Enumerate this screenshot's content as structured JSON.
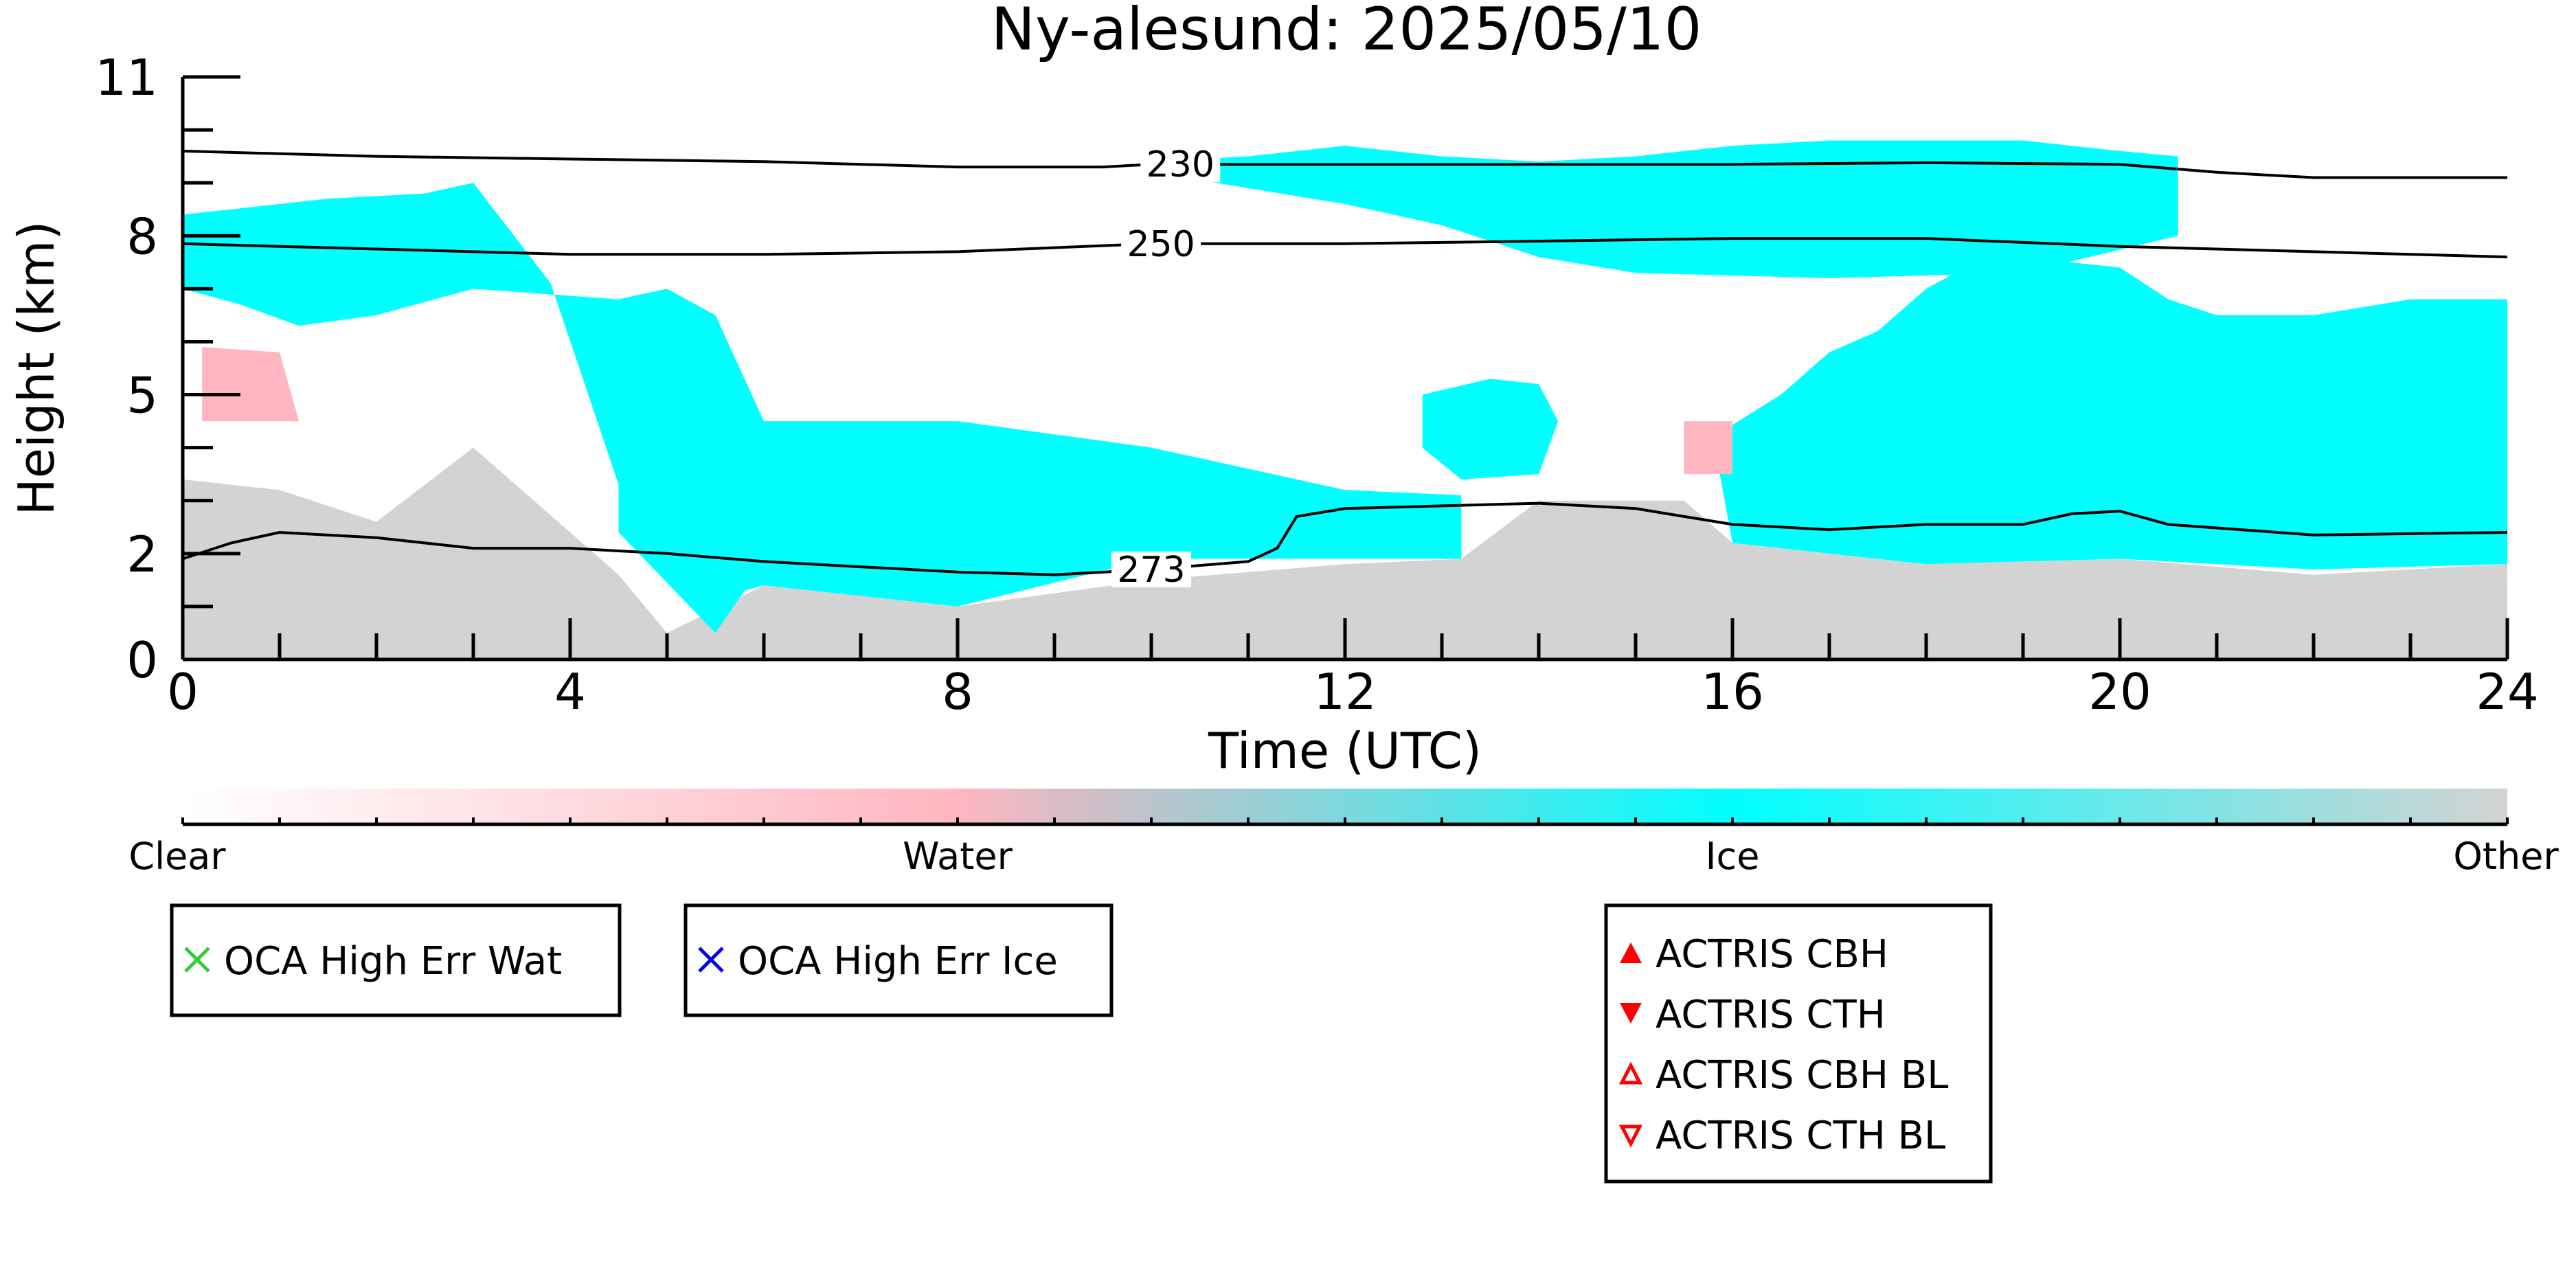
{
  "chart_data": {
    "type": "heatmap",
    "title": "Ny-alesund: 2025/05/10",
    "xlabel": "Time (UTC)",
    "ylabel": "Height (km)",
    "xlim": [
      0,
      24
    ],
    "ylim": [
      0,
      11
    ],
    "x_ticks": [
      0,
      4,
      8,
      12,
      16,
      20,
      24
    ],
    "y_ticks": [
      0,
      2,
      5,
      8,
      11
    ],
    "colors": {
      "clear": "#ffffff",
      "water": "#ffb6c1",
      "ice": "#00ffff",
      "other": "#d3d3d3"
    },
    "colorbar": {
      "labels": [
        "Clear",
        "Water",
        "Ice",
        "Other"
      ]
    },
    "temperature_contours": [
      {
        "label": "230",
        "points": [
          [
            0,
            9.6
          ],
          [
            2,
            9.5
          ],
          [
            4,
            9.45
          ],
          [
            6,
            9.4
          ],
          [
            8,
            9.3
          ],
          [
            9.5,
            9.3
          ],
          [
            10,
            9.35
          ],
          [
            12,
            9.35
          ],
          [
            14,
            9.35
          ],
          [
            16,
            9.35
          ],
          [
            18,
            9.38
          ],
          [
            20,
            9.35
          ],
          [
            21,
            9.2
          ],
          [
            22,
            9.1
          ],
          [
            24,
            9.1
          ]
        ]
      },
      {
        "label": "250",
        "points": [
          [
            0,
            7.85
          ],
          [
            2,
            7.75
          ],
          [
            4,
            7.65
          ],
          [
            6,
            7.65
          ],
          [
            8,
            7.7
          ],
          [
            10,
            7.85
          ],
          [
            12,
            7.85
          ],
          [
            14,
            7.9
          ],
          [
            16,
            7.95
          ],
          [
            18,
            7.95
          ],
          [
            20,
            7.8
          ],
          [
            22,
            7.7
          ],
          [
            24,
            7.6
          ]
        ]
      },
      {
        "label": "273",
        "points": [
          [
            0,
            1.9
          ],
          [
            0.5,
            2.2
          ],
          [
            1,
            2.4
          ],
          [
            2,
            2.3
          ],
          [
            3,
            2.1
          ],
          [
            4,
            2.1
          ],
          [
            5,
            2.0
          ],
          [
            6,
            1.85
          ],
          [
            8,
            1.65
          ],
          [
            9,
            1.6
          ],
          [
            10,
            1.7
          ],
          [
            11,
            1.85
          ],
          [
            11.3,
            2.1
          ],
          [
            11.5,
            2.7
          ],
          [
            12,
            2.85
          ],
          [
            14,
            2.95
          ],
          [
            15,
            2.85
          ],
          [
            16,
            2.55
          ],
          [
            17,
            2.45
          ],
          [
            18,
            2.55
          ],
          [
            19,
            2.55
          ],
          [
            19.5,
            2.75
          ],
          [
            20,
            2.8
          ],
          [
            20.5,
            2.55
          ],
          [
            22,
            2.35
          ],
          [
            24,
            2.4
          ]
        ]
      }
    ],
    "regions": {
      "ice": [
        {
          "x": [
            0,
            0.6,
            1.2,
            2.0,
            3.0,
            4.5,
            5.0,
            5.5,
            6.0,
            8.0,
            10.0,
            12.0,
            13.2,
            13.2,
            12.0,
            10.0,
            8.0,
            6.0,
            5.8,
            5.5,
            4.5,
            4.5,
            3.8,
            3.0,
            2.5,
            1.5,
            0.5,
            0
          ],
          "y": [
            7.0,
            6.7,
            6.3,
            6.5,
            7.0,
            6.8,
            7.0,
            6.5,
            4.5,
            4.5,
            4.0,
            3.2,
            3.1,
            1.9,
            1.9,
            1.9,
            1.0,
            1.4,
            1.3,
            0.5,
            2.4,
            3.3,
            7.1,
            9.0,
            8.8,
            8.7,
            8.5,
            8.4
          ]
        },
        {
          "x": [
            10,
            11,
            12,
            13,
            14,
            15,
            16,
            17,
            18,
            19,
            20,
            20.6,
            20.6,
            19,
            17,
            15,
            14,
            13,
            12,
            11,
            10
          ],
          "y": [
            9.4,
            9.5,
            9.7,
            9.5,
            9.4,
            9.5,
            9.7,
            9.8,
            9.8,
            9.8,
            9.6,
            9.5,
            8.0,
            7.3,
            7.2,
            7.3,
            7.6,
            8.2,
            8.6,
            8.9,
            9.2
          ]
        },
        {
          "x": [
            15.8,
            16.5,
            17.0,
            17.5,
            18.0,
            18.5,
            19.0,
            20.0,
            20.5,
            21.0,
            22.0,
            23.0,
            24.0,
            24.0,
            22.0,
            20.0,
            18.0,
            16.0
          ],
          "y": [
            4.2,
            5.0,
            5.8,
            6.2,
            7.0,
            7.5,
            7.6,
            7.4,
            6.8,
            6.5,
            6.5,
            6.8,
            6.8,
            1.8,
            1.7,
            1.9,
            1.8,
            2.2
          ]
        },
        {
          "x": [
            12.8,
            13.5,
            14.0,
            14.2,
            14.0,
            13.2,
            12.8
          ],
          "y": [
            5.0,
            5.3,
            5.2,
            4.5,
            3.5,
            3.4,
            4.0
          ]
        }
      ],
      "other": [
        {
          "x": [
            0,
            1.0,
            2.0,
            3.0,
            4.5,
            5.0,
            6.0,
            8.0,
            10.0,
            12.0,
            13.2,
            14.0,
            15.5,
            16.0,
            18.0,
            20.0,
            22.0,
            24.0,
            24.0,
            0
          ],
          "y": [
            3.4,
            3.2,
            2.6,
            4.0,
            1.6,
            0.5,
            1.4,
            1.0,
            1.5,
            1.8,
            1.9,
            3.0,
            3.0,
            2.2,
            1.8,
            1.9,
            1.6,
            1.8,
            0,
            0
          ]
        }
      ],
      "water": [
        {
          "x": [
            0.2,
            1.0,
            1.2,
            0.2
          ],
          "y": [
            5.9,
            5.8,
            4.5,
            4.5
          ]
        },
        {
          "x": [
            15.5,
            16.0,
            16.0,
            15.5
          ],
          "y": [
            4.5,
            4.5,
            3.5,
            3.5
          ]
        }
      ]
    },
    "legends": [
      {
        "items": [
          {
            "label": "OCA High Err Wat",
            "marker": "x",
            "color": "#33cc33"
          }
        ]
      },
      {
        "items": [
          {
            "label": "OCA High Err Ice",
            "marker": "x",
            "color": "#0000ee"
          }
        ]
      },
      {
        "items": [
          {
            "label": "ACTRIS CBH",
            "marker": "triangle-up-filled",
            "color": "#ff0000"
          },
          {
            "label": "ACTRIS CTH",
            "marker": "triangle-down-filled",
            "color": "#ff0000"
          },
          {
            "label": "ACTRIS CBH BL",
            "marker": "triangle-up-open",
            "color": "#ff0000"
          },
          {
            "label": "ACTRIS CTH BL",
            "marker": "triangle-down-open",
            "color": "#ff0000"
          }
        ]
      }
    ]
  }
}
